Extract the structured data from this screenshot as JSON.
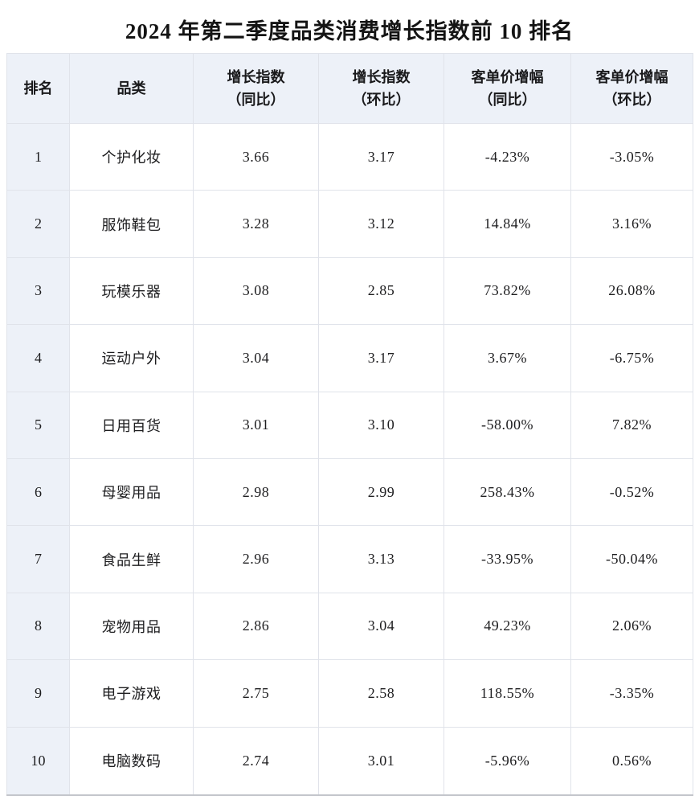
{
  "chart_data": {
    "type": "table",
    "title": "2024 年第二季度品类消费增长指数前 10 排名",
    "legend_position": "none",
    "grid": true,
    "columns": [
      {
        "id": "rank",
        "lines": [
          "排名"
        ]
      },
      {
        "id": "category",
        "lines": [
          "品类"
        ]
      },
      {
        "id": "yoy-index",
        "lines": [
          "增长指数",
          "（同比）"
        ]
      },
      {
        "id": "mom-index",
        "lines": [
          "增长指数",
          "（环比）"
        ]
      },
      {
        "id": "yoy-price",
        "lines": [
          "客单价增幅",
          "（同比）"
        ]
      },
      {
        "id": "mom-price",
        "lines": [
          "客单价增幅",
          "（环比）"
        ]
      }
    ],
    "rows": [
      [
        "1",
        "个护化妆",
        "3.66",
        "3.17",
        "-4.23%",
        "-3.05%"
      ],
      [
        "2",
        "服饰鞋包",
        "3.28",
        "3.12",
        "14.84%",
        "3.16%"
      ],
      [
        "3",
        "玩模乐器",
        "3.08",
        "2.85",
        "73.82%",
        "26.08%"
      ],
      [
        "4",
        "运动户外",
        "3.04",
        "3.17",
        "3.67%",
        "-6.75%"
      ],
      [
        "5",
        "日用百货",
        "3.01",
        "3.10",
        "-58.00%",
        "7.82%"
      ],
      [
        "6",
        "母婴用品",
        "2.98",
        "2.99",
        "258.43%",
        "-0.52%"
      ],
      [
        "7",
        "食品生鲜",
        "2.96",
        "3.13",
        "-33.95%",
        "-50.04%"
      ],
      [
        "8",
        "宠物用品",
        "2.86",
        "3.04",
        "49.23%",
        "2.06%"
      ],
      [
        "9",
        "电子游戏",
        "2.75",
        "2.58",
        "118.55%",
        "-3.35%"
      ],
      [
        "10",
        "电脑数码",
        "2.74",
        "3.01",
        "-5.96%",
        "0.56%"
      ]
    ],
    "colors": {
      "header_bg": "#edf1f8",
      "rank_column_bg": "#edf1f8",
      "cell_bg": "#ffffff",
      "grid_line": "#e0e3ea",
      "bottom_edge": "#c4c6cc",
      "text": "#1d1d1f"
    }
  }
}
